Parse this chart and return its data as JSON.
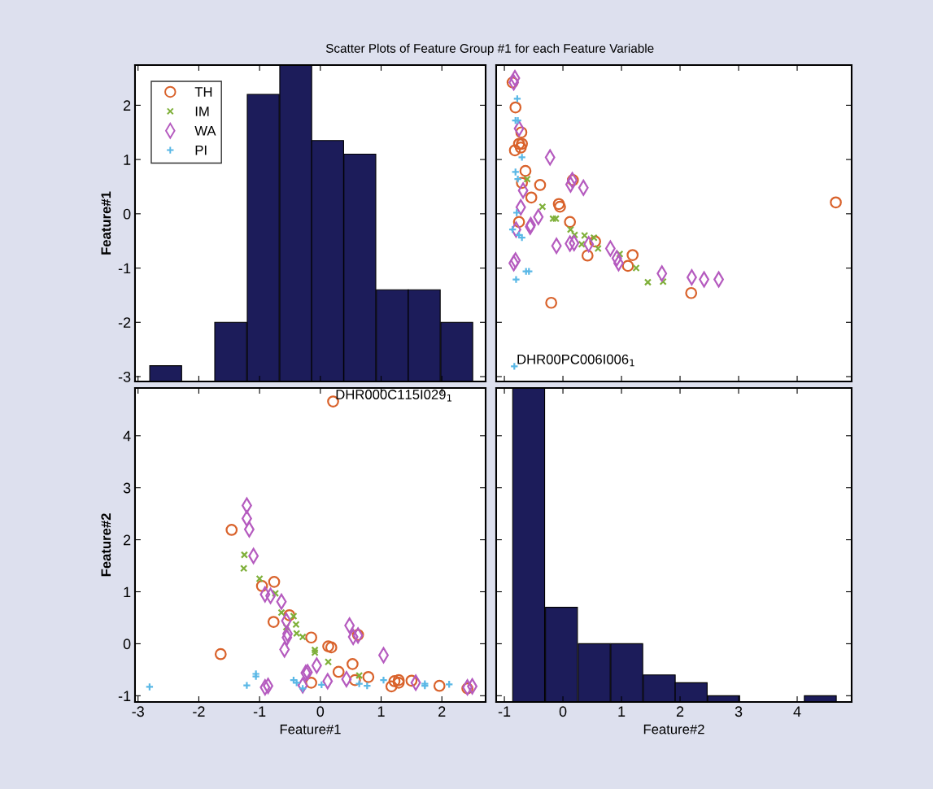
{
  "chart_data": [
    {
      "type": "bar",
      "title": "Scatter Plots of Feature Group #1 for each Feature Variable",
      "ylabel": "Feature#1",
      "color": "#1c1c5a",
      "x": [
        -2.545,
        -1.475,
        -0.94,
        -0.405,
        0.12,
        0.65,
        1.185,
        1.71,
        2.245
      ],
      "base": [
        -3.09,
        -3.09,
        -3.09,
        -3.09,
        -3.09,
        -3.09,
        -3.09,
        -3.09,
        -3.09
      ],
      "values": [
        0.29,
        1.09,
        5.29,
        5.83,
        4.44,
        4.19,
        1.69,
        1.69,
        1.09
      ],
      "xlim": [
        -3.05,
        2.72
      ],
      "ylim": [
        -3.09,
        2.74
      ],
      "xticks": [
        {
          "value": -3,
          "label": null
        },
        {
          "value": -2,
          "label": null
        },
        {
          "value": -1,
          "label": null
        },
        {
          "value": 0,
          "label": null
        },
        {
          "value": 1,
          "label": null
        },
        {
          "value": 2,
          "label": null
        }
      ],
      "yticks": [
        -3,
        -2,
        -1,
        0,
        1,
        2
      ],
      "tick_labels": "y"
    },
    {
      "type": "scatter",
      "legend": "top left",
      "xlim": [
        -1.14,
        4.93
      ],
      "ylim": [
        -3.09,
        2.74
      ],
      "xticks": [
        {
          "value": -1,
          "label": null
        },
        {
          "value": 0,
          "label": null
        },
        {
          "value": 1,
          "label": null
        },
        {
          "value": 2,
          "label": null
        },
        {
          "value": 3,
          "label": null
        },
        {
          "value": 4,
          "label": null
        }
      ],
      "yticks": [
        {
          "value": -3,
          "label": null
        },
        {
          "value": -2,
          "label": null
        },
        {
          "value": -1,
          "label": null
        },
        {
          "value": 0,
          "label": null
        },
        {
          "value": 1,
          "label": null
        },
        {
          "value": 2,
          "label": null
        }
      ],
      "tick_labels": false,
      "annotations": [
        {
          "text": "DHR00PC006I006$_{1}$",
          "x": -0.83,
          "y": -2.81
        }
      ],
      "series": [
        {
          "name": "TH",
          "color": "#d9622b",
          "marker": "circle",
          "x": [
            -0.86,
            -0.81,
            -0.71,
            -0.75,
            -0.7,
            -0.72,
            -0.82,
            -0.64,
            -0.7,
            -0.39,
            -0.54,
            0.17,
            -0.07,
            -0.05,
            -0.75,
            0.12,
            0.55,
            0.42,
            1.19,
            1.11,
            2.19,
            -0.2,
            4.66
          ],
          "values": [
            2.42,
            1.96,
            1.5,
            1.29,
            1.29,
            1.22,
            1.17,
            0.79,
            0.57,
            0.53,
            0.3,
            0.62,
            0.18,
            0.13,
            -0.15,
            -0.15,
            -0.51,
            -0.77,
            -0.76,
            -0.96,
            -1.46,
            -1.64,
            0.21
          ]
        },
        {
          "name": "IM",
          "color": "#7fb03a",
          "marker": "cross",
          "x": [
            -0.61,
            -0.17,
            -0.12,
            0.13,
            0.2,
            0.37,
            0.32,
            0.53,
            0.6,
            0.97,
            1.25,
            1.45,
            1.71,
            -0.35
          ],
          "values": [
            0.64,
            -0.09,
            -0.09,
            -0.29,
            -0.39,
            -0.4,
            -0.56,
            -0.44,
            -0.64,
            -0.74,
            -1.0,
            -1.26,
            -1.25,
            0.13
          ]
        },
        {
          "name": "WA",
          "color": "#b55bbf",
          "marker": "diamond",
          "x": [
            -0.82,
            -0.84,
            -0.75,
            -0.22,
            0.13,
            0.16,
            0.35,
            -0.72,
            -0.68,
            -0.42,
            -0.55,
            -0.56,
            -0.8,
            -0.11,
            0.12,
            0.19,
            0.44,
            0.81,
            0.92,
            0.95,
            1.69,
            2.2,
            2.41,
            2.66,
            -0.84,
            -0.81
          ],
          "values": [
            2.5,
            2.42,
            1.57,
            1.04,
            0.54,
            0.62,
            0.48,
            0.12,
            0.43,
            -0.06,
            -0.21,
            -0.24,
            -0.29,
            -0.59,
            -0.55,
            -0.54,
            -0.56,
            -0.64,
            -0.82,
            -0.91,
            -1.1,
            -1.17,
            -1.21,
            -1.21,
            -0.91,
            -0.86
          ]
        },
        {
          "name": "PI",
          "color": "#5ab8e6",
          "marker": "plus",
          "x": [
            -0.78,
            -0.77,
            -0.81,
            -0.7,
            -0.81,
            -0.77,
            -0.79,
            -0.86,
            -0.75,
            -0.7,
            -0.63,
            -0.58,
            -0.8,
            -0.83
          ],
          "values": [
            2.12,
            1.72,
            1.72,
            1.04,
            0.77,
            0.64,
            0.02,
            -0.29,
            -0.39,
            -0.44,
            -1.06,
            -1.06,
            -1.21,
            -2.81
          ]
        }
      ]
    },
    {
      "type": "scatter",
      "xlabel": "Feature#1",
      "ylabel": "Feature#2",
      "xlim": [
        -3.05,
        2.72
      ],
      "ylim": [
        -1.12,
        4.92
      ],
      "xticks": [
        -3,
        -2,
        -1,
        0,
        1,
        2
      ],
      "yticks": [
        -1,
        0,
        1,
        2,
        3,
        4
      ],
      "annotations": [
        {
          "text": "DHR000C115I029$_{1}$",
          "x": 0.21,
          "y": 4.66
        }
      ],
      "series": [
        {
          "color": "#d9622b",
          "marker": "circle",
          "x": [
            2.42,
            1.96,
            1.5,
            1.29,
            1.29,
            1.22,
            1.17,
            0.79,
            0.57,
            0.53,
            0.3,
            0.62,
            0.18,
            0.13,
            -0.15,
            -0.15,
            -0.51,
            -0.77,
            -0.76,
            -0.96,
            -1.46,
            -1.64,
            0.21
          ],
          "values": [
            -0.86,
            -0.81,
            -0.71,
            -0.75,
            -0.7,
            -0.72,
            -0.82,
            -0.64,
            -0.7,
            -0.39,
            -0.54,
            0.17,
            -0.07,
            -0.05,
            -0.75,
            0.12,
            0.55,
            0.42,
            1.19,
            1.11,
            2.19,
            -0.2,
            4.66
          ]
        },
        {
          "color": "#7fb03a",
          "marker": "cross",
          "x": [
            0.64,
            -0.09,
            -0.09,
            -0.29,
            -0.39,
            -0.4,
            -0.56,
            -0.44,
            -0.64,
            -0.74,
            -1.0,
            -1.26,
            -1.25,
            0.13
          ],
          "values": [
            -0.61,
            -0.17,
            -0.12,
            0.13,
            0.2,
            0.37,
            0.32,
            0.53,
            0.6,
            0.97,
            1.25,
            1.45,
            1.71,
            -0.35
          ]
        },
        {
          "color": "#b55bbf",
          "marker": "diamond",
          "x": [
            2.5,
            2.42,
            1.57,
            1.04,
            0.54,
            0.62,
            0.48,
            0.12,
            0.43,
            -0.06,
            -0.21,
            -0.24,
            -0.29,
            -0.59,
            -0.55,
            -0.54,
            -0.56,
            -0.64,
            -0.82,
            -0.91,
            -1.1,
            -1.17,
            -1.21,
            -1.21,
            -0.91,
            -0.86
          ],
          "values": [
            -0.82,
            -0.84,
            -0.75,
            -0.22,
            0.13,
            0.16,
            0.35,
            -0.72,
            -0.68,
            -0.42,
            -0.55,
            -0.56,
            -0.8,
            -0.11,
            0.12,
            0.19,
            0.44,
            0.81,
            0.92,
            0.95,
            1.69,
            2.2,
            2.41,
            2.66,
            -0.84,
            -0.81
          ]
        },
        {
          "color": "#5ab8e6",
          "marker": "plus",
          "x": [
            2.12,
            1.72,
            1.72,
            1.04,
            0.77,
            0.64,
            0.02,
            -0.29,
            -0.39,
            -0.44,
            -1.06,
            -1.06,
            -1.21,
            -2.81
          ],
          "values": [
            -0.78,
            -0.77,
            -0.81,
            -0.7,
            -0.81,
            -0.77,
            -0.79,
            -0.86,
            -0.75,
            -0.7,
            -0.63,
            -0.58,
            -0.8,
            -0.83
          ]
        }
      ]
    },
    {
      "type": "bar",
      "xlabel": "Feature#2",
      "color": "#1c1c5a",
      "x": [
        -0.585,
        -0.025,
        0.535,
        1.09,
        1.645,
        2.19,
        2.745,
        4.395
      ],
      "base": [
        -1.12,
        -1.12,
        -1.12,
        -1.12,
        -1.12,
        -1.12,
        -1.12,
        -1.12
      ],
      "values": [
        6.04,
        1.82,
        1.12,
        1.12,
        0.52,
        0.37,
        0.12,
        0.12
      ],
      "xlim": [
        -1.14,
        4.93
      ],
      "ylim": [
        -1.12,
        4.92
      ],
      "xticks": [
        -1,
        0,
        1,
        2,
        3,
        4
      ],
      "yticks": [
        {
          "value": -1,
          "label": null
        },
        {
          "value": 0,
          "label": null
        },
        {
          "value": 1,
          "label": null
        },
        {
          "value": 2,
          "label": null
        },
        {
          "value": 3,
          "label": null
        },
        {
          "value": 4,
          "label": null
        }
      ],
      "tick_labels": "x"
    }
  ]
}
